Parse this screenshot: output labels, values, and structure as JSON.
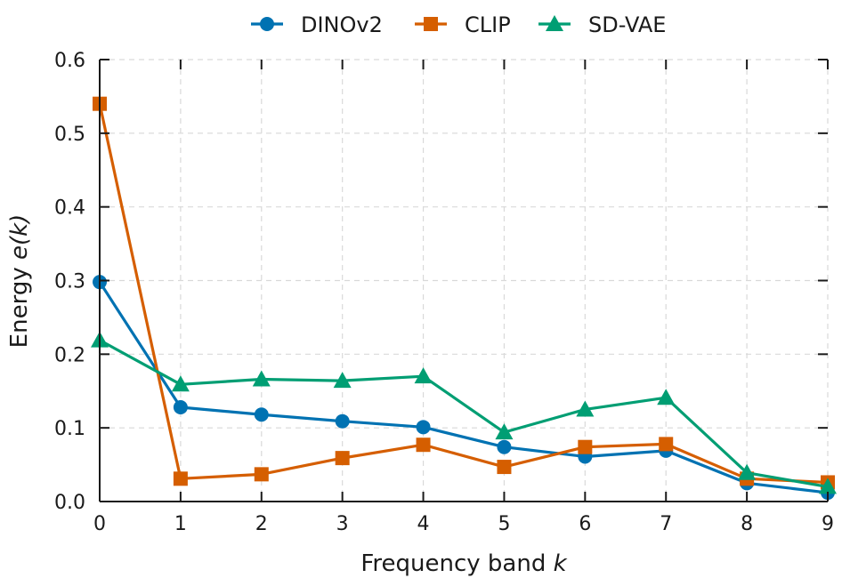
{
  "chart_data": {
    "type": "line",
    "xlabel_prefix": "Frequency band ",
    "xlabel_var": "k",
    "ylabel_prefix": "Energy ",
    "ylabel_var": "e(k)",
    "x": [
      0,
      1,
      2,
      3,
      4,
      5,
      6,
      7,
      8,
      9
    ],
    "xlim": [
      0,
      9
    ],
    "ylim": [
      0,
      0.6
    ],
    "xticks": [
      "0",
      "1",
      "2",
      "3",
      "4",
      "5",
      "6",
      "7",
      "8",
      "9"
    ],
    "yticks": [
      "0.0",
      "0.1",
      "0.2",
      "0.3",
      "0.4",
      "0.5",
      "0.6"
    ],
    "grid": true,
    "legend_position": "top",
    "series": [
      {
        "name": "DINOv2",
        "color": "#0072B2",
        "marker": "circle",
        "values": [
          0.298,
          0.128,
          0.118,
          0.109,
          0.101,
          0.074,
          0.061,
          0.069,
          0.025,
          0.012
        ]
      },
      {
        "name": "CLIP",
        "color": "#D55E00",
        "marker": "square",
        "values": [
          0.54,
          0.031,
          0.037,
          0.059,
          0.077,
          0.047,
          0.074,
          0.078,
          0.031,
          0.026
        ]
      },
      {
        "name": "SD-VAE",
        "color": "#009E73",
        "marker": "triangle",
        "values": [
          0.219,
          0.159,
          0.166,
          0.164,
          0.17,
          0.094,
          0.125,
          0.141,
          0.039,
          0.02
        ]
      }
    ]
  }
}
